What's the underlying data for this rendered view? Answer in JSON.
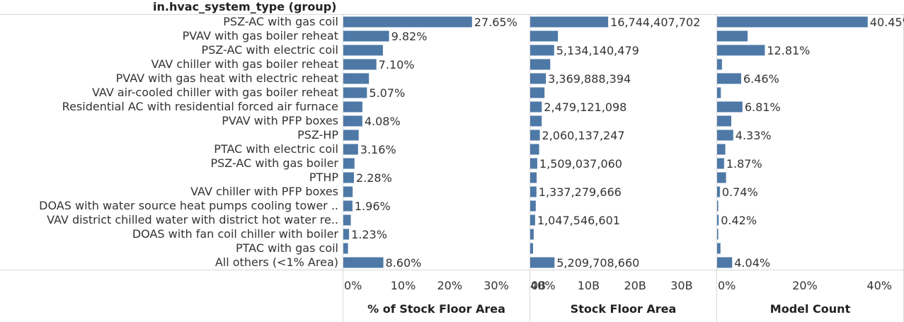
{
  "header": {
    "dimension_title": "in.hvac_system_type (group)"
  },
  "colors": {
    "bar": "#4e79a7",
    "divider": "#d9d9d9",
    "text": "#333333"
  },
  "chart_data": {
    "type": "bar",
    "orientation": "horizontal",
    "categories": [
      "PSZ-AC with gas coil",
      "PVAV with gas boiler reheat",
      "PSZ-AC with electric coil",
      "VAV chiller with gas boiler reheat",
      "PVAV with gas heat with electric reheat",
      "VAV air-cooled chiller with gas boiler reheat",
      "Residential AC with residential forced air furnace",
      "PVAV with PFP boxes",
      "PSZ-HP",
      "PTAC with electric coil",
      "PSZ-AC with gas boiler",
      "PTHP",
      "VAV chiller with PFP boxes",
      "DOAS with water source heat pumps cooling tower ..",
      "VAV district chilled water with district hot water re..",
      "DOAS with fan coil chiller with boiler",
      "PTAC with gas coil",
      "All others (<1% Area)"
    ],
    "panels": [
      {
        "title": "% of Stock Floor Area",
        "xlim": [
          0,
          40
        ],
        "ticks": [
          0,
          10,
          20,
          30,
          40
        ],
        "tick_labels": [
          "0%",
          "10%",
          "20%",
          "30%",
          "40%"
        ],
        "values": [
          27.65,
          9.82,
          8.5,
          7.1,
          5.5,
          5.07,
          4.1,
          4.08,
          3.3,
          3.16,
          2.4,
          2.28,
          2.0,
          1.96,
          1.6,
          1.23,
          1.0,
          8.6
        ],
        "data_labels": [
          "27.65%",
          "9.82%",
          "",
          "7.10%",
          "",
          "5.07%",
          "",
          "4.08%",
          "",
          "3.16%",
          "",
          "2.28%",
          "",
          "1.96%",
          "",
          "1.23%",
          "",
          "8.60%"
        ]
      },
      {
        "title": "Stock Floor Area",
        "xlim": [
          0,
          40000000000
        ],
        "ticks": [
          0,
          10000000000,
          20000000000,
          30000000000
        ],
        "tick_labels": [
          "0B",
          "10B",
          "20B",
          "30B"
        ],
        "values": [
          16744407702,
          5950000000,
          5134140479,
          4300000000,
          3369888394,
          3070000000,
          2479121098,
          2470000000,
          2060137247,
          1910000000,
          1509037060,
          1380000000,
          1337279666,
          1190000000,
          1047546601,
          745000000,
          605000000,
          5209708660
        ],
        "data_labels": [
          "16,744,407,702",
          "",
          "5,134,140,479",
          "",
          "3,369,888,394",
          "",
          "2,479,121,098",
          "",
          "2,060,137,247",
          "",
          "1,509,037,060",
          "",
          "1,337,279,666",
          "",
          "1,047,546,601",
          "",
          "",
          "5,209,708,660"
        ]
      },
      {
        "title": "Model Count",
        "xlim": [
          0,
          50
        ],
        "ticks": [
          0,
          20,
          40
        ],
        "tick_labels": [
          "0%",
          "20%",
          "40%"
        ],
        "values": [
          40.45,
          8.2,
          12.81,
          1.3,
          6.46,
          1.0,
          6.81,
          3.8,
          4.33,
          2.2,
          1.87,
          2.4,
          0.74,
          0.2,
          0.42,
          0.3,
          0.9,
          4.04
        ],
        "data_labels": [
          "40.45%",
          "",
          "12.81%",
          "",
          "6.46%",
          "",
          "6.81%",
          "",
          "4.33%",
          "",
          "1.87%",
          "",
          "0.74%",
          "",
          "0.42%",
          "",
          "",
          "4.04%"
        ]
      }
    ]
  }
}
